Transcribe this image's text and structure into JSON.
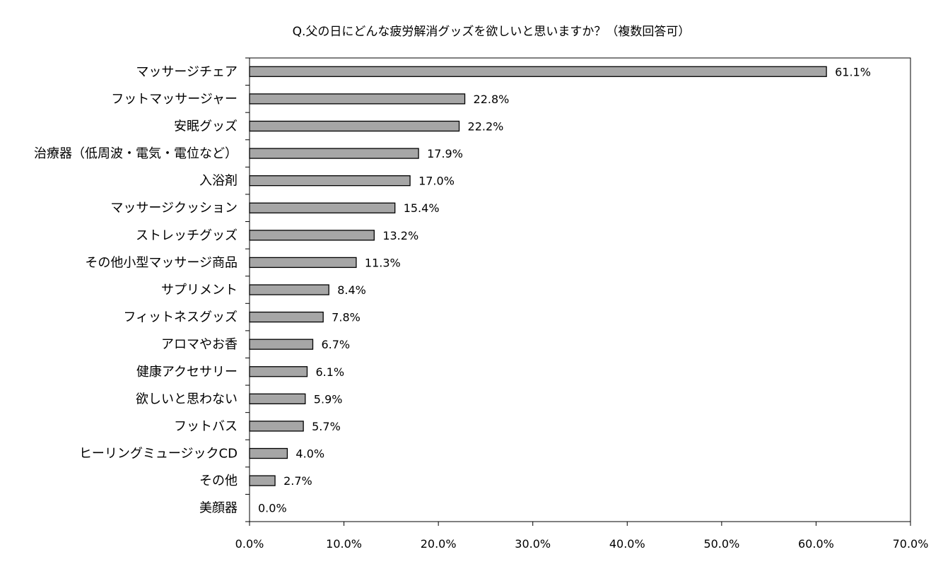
{
  "chart_data": {
    "type": "bar",
    "orientation": "horizontal",
    "title": "Q.父の日にどんな疲労解消グッズを欲しいと思いますか？（複数回答可）",
    "xlabel": "",
    "ylabel": "",
    "categories": [
      "マッサージチェア",
      "フットマッサージャー",
      "安眠グッズ",
      "治療器（低周波・電気・電位など）",
      "入浴剤",
      "マッサージクッション",
      "ストレッチグッズ",
      "その他小型マッサージ商品",
      "サプリメント",
      "フィットネスグッズ",
      "アロマやお香",
      "健康アクセサリー",
      "欲しいと思わない",
      "フットバス",
      "ヒーリングミュージックCD",
      "その他",
      "美顔器"
    ],
    "values": [
      61.1,
      22.8,
      22.2,
      17.9,
      17.0,
      15.4,
      13.2,
      11.3,
      8.4,
      7.8,
      6.7,
      6.1,
      5.9,
      5.7,
      4.0,
      2.7,
      0.0
    ],
    "value_labels": [
      "61.1%",
      "22.8%",
      "22.2%",
      "17.9%",
      "17.0%",
      "15.4%",
      "13.2%",
      "11.3%",
      "8.4%",
      "7.8%",
      "6.7%",
      "6.1%",
      "5.9%",
      "5.7%",
      "4.0%",
      "2.7%",
      "0.0%"
    ],
    "xlim": [
      0,
      70
    ],
    "x_ticks": [
      0,
      10,
      20,
      30,
      40,
      50,
      60,
      70
    ],
    "x_tick_labels": [
      "0.0%",
      "10.0%",
      "20.0%",
      "30.0%",
      "40.0%",
      "50.0%",
      "60.0%",
      "70.0%"
    ],
    "grid": false,
    "legend": "none",
    "colors": {
      "bar_fill": "#a6a6a6",
      "bar_stroke": "#000000",
      "axis": "#000000",
      "plot_border": "#000000"
    }
  }
}
